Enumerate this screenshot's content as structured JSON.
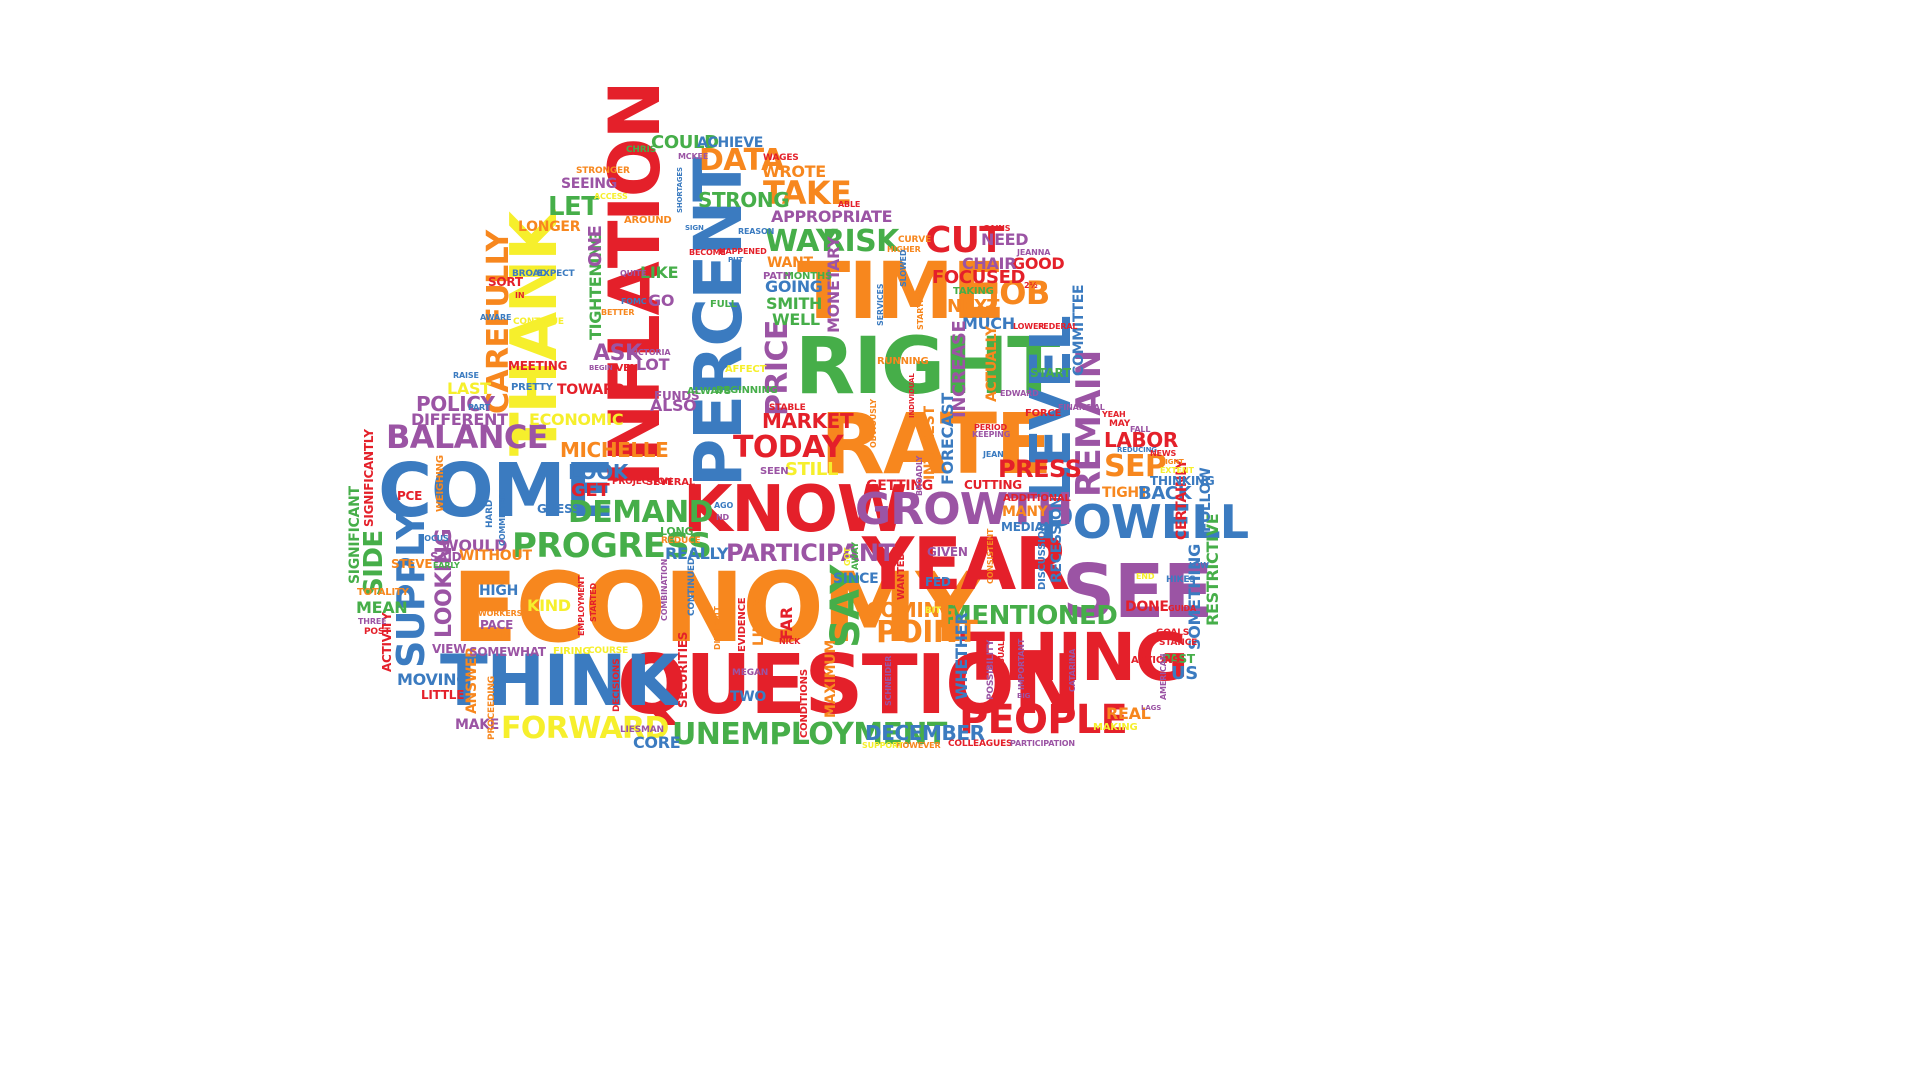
{
  "palette": {
    "red": "#E4202A",
    "orange": "#F7871E",
    "yellow": "#F6EF2C",
    "green": "#46AE49",
    "blue": "#3B7BC0",
    "purple": "#9B54A4"
  },
  "words": [
    {
      "text": "ECONOMY",
      "color": "orange"
    },
    {
      "text": "QUESTION",
      "color": "red"
    },
    {
      "text": "RATE",
      "color": "orange"
    },
    {
      "text": "RIGHT",
      "color": "green"
    },
    {
      "text": "TIME",
      "color": "orange"
    },
    {
      "text": "YEAR",
      "color": "red"
    },
    {
      "text": "THINK",
      "color": "blue"
    },
    {
      "text": "COME",
      "color": "blue"
    },
    {
      "text": "SEE",
      "color": "purple"
    },
    {
      "text": "KNOW",
      "color": "red"
    },
    {
      "text": "THING",
      "color": "red"
    },
    {
      "text": "INFLATION",
      "color": "red"
    },
    {
      "text": "PERCENT",
      "color": "blue"
    },
    {
      "text": "THANK",
      "color": "yellow"
    },
    {
      "text": "LEVEL",
      "color": "blue"
    },
    {
      "text": "POWELL",
      "color": "blue"
    },
    {
      "text": "GROWTH",
      "color": "purple"
    },
    {
      "text": "PEOPLE",
      "color": "red"
    },
    {
      "text": "PROGRESS",
      "color": "green"
    },
    {
      "text": "BALANCE",
      "color": "purple"
    },
    {
      "text": "UNEMPLOYMENT",
      "color": "green"
    },
    {
      "text": "FORWARD",
      "color": "yellow"
    },
    {
      "text": "DEMAND",
      "color": "green"
    },
    {
      "text": "PARTICIPANT",
      "color": "purple"
    },
    {
      "text": "MENTIONED",
      "color": "green"
    },
    {
      "text": "REMAIN",
      "color": "purple"
    },
    {
      "text": "CUT",
      "color": "red"
    },
    {
      "text": "PRESS",
      "color": "red"
    },
    {
      "text": "TODAY",
      "color": "red"
    },
    {
      "text": "SUPPLY",
      "color": "blue"
    },
    {
      "text": "CAREFULLY",
      "color": "orange"
    },
    {
      "text": "MICHELLE",
      "color": "orange"
    },
    {
      "text": "POINT",
      "color": "orange"
    },
    {
      "text": "DATA",
      "color": "orange"
    },
    {
      "text": "TAKE",
      "color": "orange"
    },
    {
      "text": "WAY",
      "color": "green"
    },
    {
      "text": "RISK",
      "color": "green"
    },
    {
      "text": "STRONG",
      "color": "green"
    },
    {
      "text": "JOB",
      "color": "orange"
    },
    {
      "text": "SEP",
      "color": "orange"
    },
    {
      "text": "LABOR",
      "color": "red"
    },
    {
      "text": "SAY",
      "color": "green"
    },
    {
      "text": "PRICE",
      "color": "purple"
    },
    {
      "text": "DECEMBER",
      "color": "blue"
    },
    {
      "text": "POLICY",
      "color": "purple"
    },
    {
      "text": "LOOKING",
      "color": "purple"
    },
    {
      "text": "MARKET",
      "color": "red"
    },
    {
      "text": "COMING",
      "color": "orange"
    },
    {
      "text": "LOOK",
      "color": "blue"
    },
    {
      "text": "GET",
      "color": "red"
    },
    {
      "text": "COULD",
      "color": "green"
    },
    {
      "text": "ACHIEVE",
      "color": "blue"
    },
    {
      "text": "WROTE",
      "color": "orange"
    },
    {
      "text": "LET",
      "color": "green"
    },
    {
      "text": "NEED",
      "color": "purple"
    },
    {
      "text": "GOOD",
      "color": "red"
    },
    {
      "text": "FOCUSED",
      "color": "red"
    },
    {
      "text": "CHAIR",
      "color": "purple"
    },
    {
      "text": "NEXT",
      "color": "orange"
    },
    {
      "text": "MUCH",
      "color": "blue"
    },
    {
      "text": "WELL",
      "color": "green"
    },
    {
      "text": "SMITH",
      "color": "green"
    },
    {
      "text": "GOING",
      "color": "blue"
    },
    {
      "text": "WANT",
      "color": "orange"
    },
    {
      "text": "APPROPRIATE",
      "color": "purple"
    },
    {
      "text": "LIKE",
      "color": "green"
    },
    {
      "text": "ASK",
      "color": "purple"
    },
    {
      "text": "LOT",
      "color": "purple"
    },
    {
      "text": "GO",
      "color": "purple"
    },
    {
      "text": "ALSO",
      "color": "purple"
    },
    {
      "text": "TOWARD",
      "color": "red"
    },
    {
      "text": "ECONOMIC",
      "color": "yellow"
    },
    {
      "text": "LAST",
      "color": "yellow"
    },
    {
      "text": "DIFFERENT",
      "color": "purple"
    },
    {
      "text": "WOULD",
      "color": "purple"
    },
    {
      "text": "SIDE",
      "color": "green"
    },
    {
      "text": "MEAN",
      "color": "green"
    },
    {
      "text": "MOVING",
      "color": "blue"
    },
    {
      "text": "HIGH",
      "color": "blue"
    },
    {
      "text": "KIND",
      "color": "yellow"
    },
    {
      "text": "REALLY",
      "color": "blue"
    },
    {
      "text": "SINCE",
      "color": "blue"
    },
    {
      "text": "STILL",
      "color": "yellow"
    },
    {
      "text": "GETTING",
      "color": "red"
    },
    {
      "text": "TIGHT",
      "color": "orange"
    },
    {
      "text": "BACK",
      "color": "blue"
    },
    {
      "text": "MANY",
      "color": "orange"
    },
    {
      "text": "REAL",
      "color": "orange"
    },
    {
      "text": "CORE",
      "color": "blue"
    },
    {
      "text": "TWO",
      "color": "blue"
    },
    {
      "text": "SEEING",
      "color": "purple"
    },
    {
      "text": "LONGER",
      "color": "orange"
    },
    {
      "text": "MONETARY",
      "color": "purple"
    },
    {
      "text": "COMMITTEE",
      "color": "blue"
    },
    {
      "text": "RECESSION",
      "color": "blue"
    },
    {
      "text": "ACTUALLY",
      "color": "orange"
    },
    {
      "text": "INCREASE",
      "color": "purple"
    },
    {
      "text": "FORECAST",
      "color": "blue"
    },
    {
      "text": "START",
      "color": "green"
    },
    {
      "text": "WHETHER",
      "color": "blue"
    },
    {
      "text": "SOMETHING",
      "color": "blue"
    },
    {
      "text": "RESTRICTIVE",
      "color": "green"
    },
    {
      "text": "CERTAINLY",
      "color": "red"
    },
    {
      "text": "FOLLOW",
      "color": "blue"
    },
    {
      "text": "TIGHTENING",
      "color": "green"
    },
    {
      "text": "ONE",
      "color": "purple"
    },
    {
      "text": "ACTIVITY",
      "color": "red"
    },
    {
      "text": "SIGNIFICANT",
      "color": "green"
    },
    {
      "text": "SIGNIFICANTLY",
      "color": "red"
    },
    {
      "text": "MAXIMUM",
      "color": "orange"
    },
    {
      "text": "SECURITIES",
      "color": "red"
    },
    {
      "text": "FAR",
      "color": "red"
    },
    {
      "text": "LIKELY",
      "color": "orange"
    },
    {
      "text": "MAKE",
      "color": "purple"
    },
    {
      "text": "GUESS",
      "color": "blue"
    },
    {
      "text": "SEVERAL",
      "color": "red"
    },
    {
      "text": "US",
      "color": "blue"
    },
    {
      "text": "DONE",
      "color": "red"
    },
    {
      "text": "PAST",
      "color": "green"
    },
    {
      "text": "ANSWER",
      "color": "orange"
    },
    {
      "text": "PACE",
      "color": "purple"
    },
    {
      "text": "SOMEWHAT",
      "color": "purple"
    },
    {
      "text": "WITHOUT",
      "color": "orange"
    },
    {
      "text": "STEVE",
      "color": "orange"
    },
    {
      "text": "LITTLE",
      "color": "red"
    },
    {
      "text": "PROCEEDING",
      "color": "orange"
    },
    {
      "text": "PCE",
      "color": "red"
    },
    {
      "text": "WEIGHING",
      "color": "orange"
    },
    {
      "text": "TOTALITY",
      "color": "orange"
    },
    {
      "text": "SAID",
      "color": "purple"
    },
    {
      "text": "VIEW",
      "color": "purple"
    },
    {
      "text": "MEETING",
      "color": "red"
    },
    {
      "text": "PRETTY",
      "color": "blue"
    },
    {
      "text": "FED",
      "color": "blue"
    },
    {
      "text": "GIVEN",
      "color": "purple"
    },
    {
      "text": "FUNDS",
      "color": "purple"
    },
    {
      "text": "ALWAYS",
      "color": "green"
    },
    {
      "text": "BEGINNING",
      "color": "green"
    },
    {
      "text": "EVEN",
      "color": "red"
    },
    {
      "text": "FULL",
      "color": "green"
    },
    {
      "text": "MONTHS",
      "color": "green"
    },
    {
      "text": "PATH",
      "color": "purple"
    },
    {
      "text": "SORT",
      "color": "red"
    },
    {
      "text": "BROAD",
      "color": "blue"
    },
    {
      "text": "EXPECT",
      "color": "blue"
    },
    {
      "text": "CHRIS",
      "color": "green"
    },
    {
      "text": "STRONGER",
      "color": "orange"
    },
    {
      "text": "WAGES",
      "color": "red"
    },
    {
      "text": "ABLE",
      "color": "red"
    },
    {
      "text": "TAKING",
      "color": "green"
    },
    {
      "text": "JEANNA",
      "color": "purple"
    },
    {
      "text": "CONDITIONS",
      "color": "red"
    },
    {
      "text": "DISCUSSION",
      "color": "blue"
    },
    {
      "text": "HIKES",
      "color": "blue"
    },
    {
      "text": "COLLEAGUES",
      "color": "red"
    },
    {
      "text": "PARTICIPATION",
      "color": "purple"
    },
    {
      "text": "ACTIONS",
      "color": "red"
    },
    {
      "text": "GOALS",
      "color": "red"
    },
    {
      "text": "STANCE",
      "color": "red"
    },
    {
      "text": "THINKING",
      "color": "blue"
    },
    {
      "text": "ADDITIONAL",
      "color": "red"
    },
    {
      "text": "MEDIAN",
      "color": "blue"
    },
    {
      "text": "CUTTING",
      "color": "red"
    },
    {
      "text": "RUNNING",
      "color": "orange"
    },
    {
      "text": "STABLE",
      "color": "red"
    },
    {
      "text": "SEEN",
      "color": "purple"
    },
    {
      "text": "EVIDENCE",
      "color": "red"
    },
    {
      "text": "CONTINUED",
      "color": "blue"
    },
    {
      "text": "REDUCE",
      "color": "orange"
    },
    {
      "text": "LONG",
      "color": "green"
    },
    {
      "text": "PROJECTION",
      "color": "red"
    },
    {
      "text": "HARD",
      "color": "blue"
    },
    {
      "text": "COMMITTED",
      "color": "blue"
    },
    {
      "text": "FOCUS",
      "color": "blue"
    },
    {
      "text": "EARLY",
      "color": "green"
    },
    {
      "text": "THREE",
      "color": "purple"
    },
    {
      "text": "POST",
      "color": "red"
    },
    {
      "text": "RAISE",
      "color": "blue"
    },
    {
      "text": "PART",
      "color": "blue"
    },
    {
      "text": "CONTINUE",
      "color": "yellow"
    },
    {
      "text": "AWARE",
      "color": "blue"
    },
    {
      "text": "QUITE",
      "color": "purple"
    },
    {
      "text": "FOMC",
      "color": "blue"
    },
    {
      "text": "BETTER",
      "color": "orange"
    },
    {
      "text": "VICTORIA",
      "color": "purple"
    },
    {
      "text": "BEGIN",
      "color": "purple"
    },
    {
      "text": "SIGN",
      "color": "blue"
    },
    {
      "text": "BECOME",
      "color": "red"
    },
    {
      "text": "HAPPENED",
      "color": "red"
    },
    {
      "text": "PUT",
      "color": "blue"
    },
    {
      "text": "REASON",
      "color": "blue"
    },
    {
      "text": "SHORTAGES",
      "color": "blue"
    },
    {
      "text": "MCKEE",
      "color": "purple"
    },
    {
      "text": "CURVE",
      "color": "orange"
    },
    {
      "text": "HIGHER",
      "color": "orange"
    },
    {
      "text": "SLOWED",
      "color": "blue"
    },
    {
      "text": "GAINS",
      "color": "red"
    },
    {
      "text": "LOWER",
      "color": "red"
    },
    {
      "text": "FEDERAL",
      "color": "red"
    },
    {
      "text": "EDWARD",
      "color": "purple"
    },
    {
      "text": "FORCE",
      "color": "red"
    },
    {
      "text": "FINANCIAL",
      "color": "purple"
    },
    {
      "text": "YEAH",
      "color": "red"
    },
    {
      "text": "MAY",
      "color": "red"
    },
    {
      "text": "FALL",
      "color": "purple"
    },
    {
      "text": "REDUCING",
      "color": "blue"
    },
    {
      "text": "NEWS",
      "color": "red"
    },
    {
      "text": "RIGHT",
      "color": "orange"
    },
    {
      "text": "EXTENT",
      "color": "yellow"
    },
    {
      "text": "PERIOD",
      "color": "red"
    },
    {
      "text": "KEEPING",
      "color": "purple"
    },
    {
      "text": "JEAN",
      "color": "blue"
    },
    {
      "text": "BROADLY",
      "color": "purple"
    },
    {
      "text": "INTEREST",
      "color": "orange"
    },
    {
      "text": "OBVIOUSLY",
      "color": "orange"
    },
    {
      "text": "INDIVIDUAL",
      "color": "red"
    },
    {
      "text": "SERVICES",
      "color": "blue"
    },
    {
      "text": "STARTING",
      "color": "orange"
    },
    {
      "text": "AFFECT",
      "color": "yellow"
    },
    {
      "text": "WORKERS",
      "color": "orange"
    },
    {
      "text": "HI",
      "color": "orange"
    },
    {
      "text": "EMPLOYMENT",
      "color": "red"
    },
    {
      "text": "STARTED",
      "color": "red"
    },
    {
      "text": "FIRING",
      "color": "yellow"
    },
    {
      "text": "COURSE",
      "color": "yellow"
    },
    {
      "text": "DECISIONS",
      "color": "red"
    },
    {
      "text": "COMBINATION",
      "color": "purple"
    },
    {
      "text": "DIFFICULT",
      "color": "orange"
    },
    {
      "text": "MEGAN",
      "color": "purple"
    },
    {
      "text": "LIESMAN",
      "color": "purple"
    },
    {
      "text": "NICK",
      "color": "red"
    },
    {
      "text": "AWAY",
      "color": "green"
    },
    {
      "text": "GOT",
      "color": "yellow"
    },
    {
      "text": "WANTED",
      "color": "red"
    },
    {
      "text": "BIT",
      "color": "yellow"
    },
    {
      "text": "SCHNEIDER",
      "color": "purple"
    },
    {
      "text": "POSSIBILITY",
      "color": "purple"
    },
    {
      "text": "UNUSUAL",
      "color": "red"
    },
    {
      "text": "IMPORTANT",
      "color": "purple"
    },
    {
      "text": "CATARINA",
      "color": "purple"
    },
    {
      "text": "BIG",
      "color": "purple"
    },
    {
      "text": "AMERICAN",
      "color": "purple"
    },
    {
      "text": "LAGS",
      "color": "purple"
    },
    {
      "text": "GUIDA",
      "color": "red"
    },
    {
      "text": "END",
      "color": "yellow"
    },
    {
      "text": "LOW",
      "color": "blue"
    },
    {
      "text": "MAKING",
      "color": "yellow"
    },
    {
      "text": "2½",
      "color": "red"
    },
    {
      "text": "CONSISTENT",
      "color": "orange"
    },
    {
      "text": "HOWEVER",
      "color": "orange"
    },
    {
      "text": "SUPPORT",
      "color": "yellow"
    },
    {
      "text": "AROUND",
      "color": "orange"
    },
    {
      "text": "AGO",
      "color": "blue"
    },
    {
      "text": "ND",
      "color": "purple"
    },
    {
      "text": "IN",
      "color": "red"
    },
    {
      "text": "ACCESS",
      "color": "yellow"
    }
  ]
}
